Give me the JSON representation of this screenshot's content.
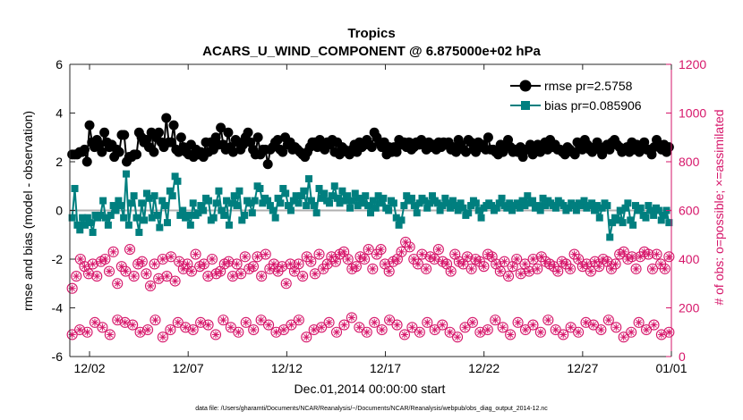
{
  "colors": {
    "rmse": "#000000",
    "bias": "#007f7f",
    "obs": "#d6166a",
    "zero_line": "#b0b0b0",
    "axis": "#262626",
    "background": "#ffffff"
  },
  "chart_data": {
    "type": "line",
    "title": "Tropics",
    "subtitle": "ACARS_U_WIND_COMPONENT @ 6.875000e+02 hPa",
    "xlabel": "Dec.01,2014 00:00:00 start",
    "ylabel": "rmse and bias (model - observation)",
    "ylabel_right": "# of obs: o=possible; ×=assimilated",
    "footer": "data file: /Users/gharamti/Documents/NCAR/Reanalysis/~/Documents/NCAR/Reanalysis/webpub/obs_diag_output_2014-12.nc",
    "xlim": [
      0.5,
      31.0
    ],
    "ylim": [
      -6,
      6
    ],
    "ylim_right": [
      0,
      1200
    ],
    "x_ticks": [
      1.5,
      6.5,
      11.5,
      16.5,
      21.5,
      26.5,
      31.0
    ],
    "x_tick_labels": [
      "12/02",
      "12/07",
      "12/12",
      "12/17",
      "12/22",
      "12/27",
      "01/01"
    ],
    "y_ticks": [
      -6,
      -4,
      -2,
      0,
      2,
      4,
      6
    ],
    "y_tick_labels": [
      "-6",
      "-4",
      "-2",
      "0",
      "2",
      "4",
      "6"
    ],
    "y_ticks_right": [
      0,
      200,
      400,
      600,
      800,
      1000,
      1200
    ],
    "y_tick_labels_right": [
      "0",
      "200",
      "400",
      "600",
      "800",
      "1000",
      "1200"
    ],
    "legend_position": "top-right",
    "legend": [
      {
        "key": "rmse",
        "label": "rmse pr=2.5758"
      },
      {
        "key": "bias",
        "label": "bias pr=0.085906"
      }
    ],
    "series": [
      {
        "name": "rmse",
        "axis": "left",
        "marker": "circle",
        "values": [
          2.3,
          2.3,
          2.3,
          2.4,
          2.4,
          2.5,
          2.0,
          3.5,
          2.8,
          2.6,
          2.9,
          2.7,
          2.4,
          3.2,
          2.8,
          2.6,
          2.7,
          2.2,
          2.5,
          2.4,
          3.1,
          3.1,
          2.0,
          2.2,
          2.2,
          2.3,
          2.3,
          3.2,
          3.0,
          2.8,
          2.9,
          2.6,
          3.2,
          2.4,
          3.0,
          3.2,
          2.8,
          2.6,
          3.8,
          2.8,
          2.8,
          3.5,
          2.5,
          2.4,
          3.0,
          2.6,
          2.4,
          2.3,
          2.7,
          2.2,
          2.5,
          2.3,
          2.4,
          2.2,
          2.8,
          2.4,
          2.8,
          2.5,
          3.0,
          2.7,
          3.4,
          2.7,
          2.5,
          3.2,
          2.6,
          2.4,
          2.9,
          2.8,
          2.5,
          2.7,
          3.0,
          3.2,
          2.8,
          2.5,
          2.3,
          3.0,
          2.3,
          2.5,
          2.5,
          1.9,
          2.5,
          2.6,
          2.8,
          2.9,
          2.5,
          2.4,
          3.0,
          2.7,
          2.8,
          2.5,
          2.6,
          2.5,
          2.4,
          2.3,
          2.2,
          2.4,
          2.6,
          2.8,
          2.8,
          2.6,
          2.9,
          2.6,
          2.5,
          2.8,
          2.7,
          2.9,
          2.4,
          2.8,
          2.3,
          2.6,
          2.5,
          2.4,
          2.3,
          2.5,
          2.7,
          2.4,
          2.8,
          2.6,
          2.7,
          2.9,
          2.7,
          2.6,
          3.2,
          3.0,
          2.8,
          2.6,
          2.8,
          2.3,
          2.6,
          2.4,
          2.6,
          2.4,
          2.9,
          2.7,
          2.8,
          2.6,
          2.8,
          2.5,
          2.6,
          2.8,
          2.7,
          2.9,
          2.7,
          2.5,
          2.8,
          2.6,
          2.7,
          2.5,
          2.8,
          2.6,
          2.8,
          2.7,
          2.8,
          2.5,
          2.6,
          2.4,
          2.9,
          2.7,
          2.5,
          2.4,
          2.9,
          2.8,
          2.5,
          2.4,
          2.8,
          2.6,
          2.7,
          2.5,
          3.0,
          2.5,
          2.5,
          2.4,
          2.3,
          2.7,
          2.4,
          2.6,
          2.9,
          2.6,
          2.4,
          2.5,
          2.4,
          2.6,
          2.2,
          2.5,
          2.5,
          2.7,
          2.3,
          2.6,
          2.7,
          2.4,
          2.5,
          2.8,
          2.5,
          2.9,
          2.6,
          2.7,
          2.5,
          2.5,
          2.4,
          2.3,
          2.6,
          2.5,
          2.4,
          2.3,
          2.8,
          2.6,
          2.5,
          2.9,
          2.7,
          2.5,
          2.4,
          2.6,
          2.8,
          2.5,
          2.3,
          2.6,
          2.7,
          2.5,
          2.8,
          2.9,
          2.7,
          2.6,
          2.4,
          2.5,
          2.6,
          2.4,
          2.8,
          2.5,
          2.7,
          2.4,
          2.6,
          2.8,
          2.5,
          2.5,
          2.3,
          2.6,
          2.9,
          2.6,
          2.5,
          2.7,
          2.4,
          2.6
        ]
      },
      {
        "name": "bias",
        "axis": "left",
        "marker": "square",
        "values": [
          -0.3,
          0.9,
          -0.6,
          -0.8,
          -0.3,
          -0.6,
          -0.3,
          -0.5,
          -0.9,
          -0.2,
          -0.3,
          -0.2,
          0.4,
          -0.3,
          -0.6,
          -0.2,
          0.2,
          0.0,
          0.4,
          0.2,
          -0.3,
          1.5,
          -0.6,
          0.3,
          0.6,
          -0.3,
          -0.9,
          0.3,
          -0.4,
          0.7,
          0.5,
          -0.3,
          0.6,
          -0.2,
          -0.7,
          0.4,
          0.2,
          -0.5,
          0.8,
          0.6,
          1.4,
          1.2,
          -0.2,
          0.0,
          -0.3,
          -0.2,
          -0.6,
          0.3,
          -0.2,
          -0.1,
          0.2,
          0.0,
          0.5,
          0.4,
          -0.4,
          -0.3,
          0.3,
          0.8,
          0.0,
          -0.2,
          0.4,
          -0.6,
          0.3,
          0.6,
          0.2,
          0.8,
          -0.4,
          -0.2,
          0.4,
          0.3,
          -0.1,
          0.4,
          1.0,
          0.9,
          0.3,
          0.5,
          0.4,
          0.2,
          0.0,
          -0.3,
          0.5,
          0.3,
          0.9,
          0.7,
          0.2,
          0.0,
          0.4,
          0.6,
          0.3,
          0.6,
          0.8,
          0.2,
          1.3,
          0.4,
          0.2,
          -0.1,
          0.9,
          0.5,
          0.7,
          0.4,
          0.3,
          0.6,
          1.0,
          0.5,
          0.3,
          0.8,
          0.4,
          0.6,
          0.1,
          0.4,
          0.7,
          0.2,
          0.5,
          0.3,
          0.6,
          0.2,
          -0.1,
          0.4,
          0.1,
          0.6,
          0.3,
          0.5,
          0.1,
          0.0,
          0.4,
          0.3,
          -0.3,
          -0.6,
          -0.4,
          0.2,
          0.6,
          0.4,
          0.5,
          0.2,
          -0.1,
          0.3,
          0.5,
          0.4,
          0.1,
          0.3,
          0.6,
          0.4,
          0.3,
          0.0,
          0.2,
          0.5,
          0.3,
          0.1,
          0.4,
          0.2,
          0.0,
          0.3,
          0.1,
          -0.2,
          -0.1,
          0.2,
          0.4,
          0.3,
          0.0,
          -0.3,
          0.1,
          0.2,
          0.3,
          0.2,
          0.0,
          0.1,
          0.3,
          0.5,
          0.2,
          0.1,
          0.3,
          0.0,
          0.2,
          0.3,
          0.1,
          0.4,
          0.2,
          0.6,
          0.3,
          0.4,
          0.1,
          0.2,
          0.0,
          0.5,
          0.2,
          0.4,
          0.3,
          0.2,
          0.1,
          0.4,
          0.3,
          0.2,
          0.0,
          0.1,
          0.3,
          0.2,
          0.0,
          0.3,
          0.2,
          0.4,
          0.1,
          0.2,
          0.3,
          0.0,
          0.2,
          -0.3,
          0.1,
          0.3,
          0.2,
          -1.1,
          -0.5,
          -0.3,
          -0.4,
          0.0,
          -0.5,
          0.1,
          0.3,
          -0.4,
          -0.6,
          0.2,
          0.0,
          0.1,
          -0.2,
          -0.3,
          0.2,
          0.0,
          -0.2,
          0.1,
          0.0,
          -0.4,
          -0.2,
          0.0,
          -0.5
        ]
      },
      {
        "name": "obs_possible_upper",
        "axis": "right",
        "marker": "circle-open",
        "values": [
          280,
          330,
          400,
          370,
          340,
          380,
          330,
          390,
          400,
          350,
          430,
          300,
          370,
          350,
          440,
          330,
          380,
          390,
          340,
          290,
          380,
          320,
          400,
          330,
          410,
          310,
          390,
          360,
          380,
          350,
          420,
          370,
          380,
          330,
          400,
          340,
          350,
          380,
          390,
          330,
          380,
          340,
          410,
          360,
          370,
          410,
          330,
          420,
          360,
          380,
          350,
          370,
          300,
          380,
          350,
          380,
          330,
          410,
          390,
          340,
          420,
          360,
          380,
          410,
          390,
          420,
          430,
          400,
          360,
          370,
          410,
          400,
          440,
          360,
          420,
          440,
          380,
          350,
          390,
          400,
          430,
          470,
          450,
          400,
          380,
          420,
          360,
          410,
          400,
          440,
          390,
          380,
          350,
          420,
          390,
          380,
          410,
          360,
          400,
          390,
          370,
          420,
          410,
          380,
          350,
          390,
          330,
          370,
          400,
          340,
          380,
          350,
          400,
          360,
          410,
          390,
          380,
          370,
          350,
          390,
          380,
          360,
          420,
          400,
          370,
          380,
          350,
          390,
          370,
          400,
          390,
          360,
          380,
          420,
          430,
          400,
          410,
          360,
          410,
          430,
          420,
          360,
          420,
          380,
          360,
          410
        ]
      },
      {
        "name": "obs_possible_lower",
        "axis": "right",
        "marker": "circle-open",
        "values": [
          90,
          110,
          100,
          140,
          120,
          90,
          150,
          140,
          130,
          100,
          110,
          150,
          80,
          110,
          140,
          120,
          110,
          140,
          130,
          90,
          150,
          120,
          100,
          140,
          110,
          150,
          130,
          100,
          110,
          130,
          150,
          80,
          110,
          120,
          140,
          100,
          130,
          160,
          120,
          100,
          140,
          110,
          150,
          130,
          90,
          120,
          100,
          140,
          110,
          130,
          100,
          80,
          120,
          140,
          100,
          110,
          150,
          120,
          90,
          140,
          110,
          130,
          100,
          150,
          110,
          90,
          120,
          100,
          140,
          130,
          110,
          150,
          120,
          80,
          100,
          140,
          110,
          130,
          90,
          100
        ]
      },
      {
        "name": "obs_assimilated_upper",
        "axis": "right",
        "marker": "asterisk",
        "values": [
          280,
          330,
          400,
          370,
          340,
          380,
          330,
          390,
          400,
          350,
          430,
          300,
          370,
          350,
          440,
          330,
          380,
          390,
          340,
          290,
          380,
          320,
          400,
          330,
          410,
          310,
          390,
          360,
          380,
          350,
          420,
          370,
          380,
          330,
          400,
          340,
          350,
          380,
          390,
          330,
          380,
          340,
          410,
          360,
          370,
          410,
          330,
          420,
          360,
          380,
          350,
          370,
          300,
          380,
          350,
          380,
          330,
          410,
          390,
          340,
          420,
          360,
          380,
          410,
          390,
          420,
          430,
          400,
          360,
          370,
          410,
          400,
          440,
          360,
          420,
          440,
          380,
          350,
          390,
          400,
          430,
          470,
          450,
          400,
          380,
          420,
          360,
          410,
          400,
          440,
          390,
          380,
          350,
          420,
          390,
          380,
          410,
          360,
          400,
          390,
          370,
          420,
          410,
          380,
          350,
          390,
          330,
          370,
          400,
          340,
          380,
          350,
          400,
          360,
          410,
          390,
          380,
          370,
          350,
          390,
          380,
          360,
          420,
          400,
          370,
          380,
          350,
          390,
          370,
          400,
          390,
          360,
          380,
          420,
          430,
          400,
          410,
          360,
          410,
          430,
          420,
          360,
          420,
          380,
          360,
          410
        ]
      },
      {
        "name": "obs_assimilated_lower",
        "axis": "right",
        "marker": "asterisk",
        "values": [
          90,
          110,
          100,
          140,
          120,
          90,
          150,
          140,
          130,
          100,
          110,
          150,
          80,
          110,
          140,
          120,
          110,
          140,
          130,
          90,
          150,
          120,
          100,
          140,
          110,
          150,
          130,
          100,
          110,
          130,
          150,
          80,
          110,
          120,
          140,
          100,
          130,
          160,
          120,
          100,
          140,
          110,
          150,
          130,
          90,
          120,
          100,
          140,
          110,
          130,
          100,
          80,
          120,
          140,
          100,
          110,
          150,
          120,
          90,
          140,
          110,
          130,
          100,
          150,
          110,
          90,
          120,
          100,
          140,
          130,
          110,
          150,
          120,
          80,
          100,
          140,
          110,
          130,
          90,
          100
        ]
      }
    ]
  }
}
